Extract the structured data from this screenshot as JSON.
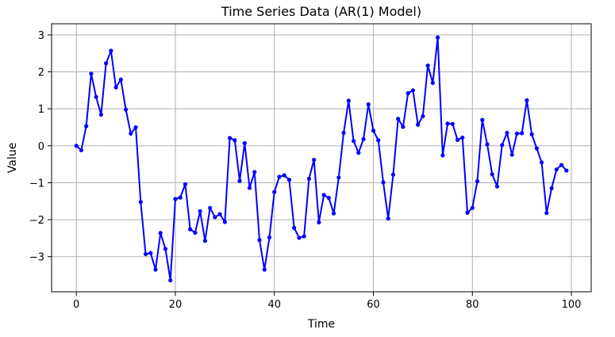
{
  "chart_data": {
    "type": "line",
    "title": "Time Series Data (AR(1) Model)",
    "xlabel": "Time",
    "ylabel": "Value",
    "xlim": [
      -5,
      104
    ],
    "ylim": [
      -3.95,
      3.3
    ],
    "xticks": [
      0,
      20,
      40,
      60,
      80,
      100
    ],
    "yticks": [
      -3,
      -2,
      -1,
      0,
      1,
      2,
      3
    ],
    "grid": true,
    "series": [
      {
        "color": "#0000ff",
        "marker": "circle",
        "x": [
          0,
          1,
          2,
          3,
          4,
          5,
          6,
          7,
          8,
          9,
          10,
          11,
          12,
          13,
          14,
          15,
          16,
          17,
          18,
          19,
          20,
          21,
          22,
          23,
          24,
          25,
          26,
          27,
          28,
          29,
          30,
          31,
          32,
          33,
          34,
          35,
          36,
          37,
          38,
          39,
          40,
          41,
          42,
          43,
          44,
          45,
          46,
          47,
          48,
          49,
          50,
          51,
          52,
          53,
          54,
          55,
          56,
          57,
          58,
          59,
          60,
          61,
          62,
          63,
          64,
          65,
          66,
          67,
          68,
          69,
          70,
          71,
          72,
          73,
          74,
          75,
          76,
          77,
          78,
          79,
          80,
          81,
          82,
          83,
          84,
          85,
          86,
          87,
          88,
          89,
          90,
          91,
          92,
          93,
          94,
          95,
          96,
          97,
          98,
          99
        ],
        "y": [
          0.0,
          -0.12,
          0.53,
          1.95,
          1.32,
          0.84,
          2.23,
          2.57,
          1.58,
          1.79,
          0.98,
          0.33,
          0.5,
          -1.52,
          -2.93,
          -2.9,
          -3.35,
          -2.36,
          -2.79,
          -3.64,
          -1.44,
          -1.4,
          -1.04,
          -2.26,
          -2.35,
          -1.77,
          -2.57,
          -1.68,
          -1.93,
          -1.85,
          -2.06,
          0.21,
          0.15,
          -0.95,
          0.07,
          -1.14,
          -0.71,
          -2.55,
          -3.35,
          -2.48,
          -1.25,
          -0.84,
          -0.8,
          -0.92,
          -2.22,
          -2.49,
          -2.45,
          -0.89,
          -0.38,
          -2.07,
          -1.33,
          -1.41,
          -1.83,
          -0.86,
          0.35,
          1.22,
          0.13,
          -0.19,
          0.18,
          1.12,
          0.41,
          0.15,
          -0.99,
          -1.97,
          -0.78,
          0.73,
          0.51,
          1.42,
          1.5,
          0.57,
          0.8,
          2.17,
          1.7,
          2.93,
          -0.26,
          0.6,
          0.59,
          0.16,
          0.22,
          -1.81,
          -1.68,
          -0.96,
          0.7,
          0.04,
          -0.77,
          -1.1,
          0.02,
          0.35,
          -0.24,
          0.33,
          0.34,
          1.23,
          0.31,
          -0.07,
          -0.45,
          -1.82,
          -1.15,
          -0.64,
          -0.52,
          -0.67
        ]
      }
    ]
  }
}
